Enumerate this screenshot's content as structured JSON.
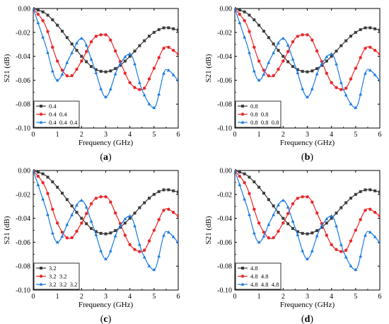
{
  "chart_data": [
    {
      "type": "line",
      "panel_label": "a",
      "xlabel": "Frequency (GHz)",
      "ylabel": "S21 (dB)",
      "xlim": [
        0,
        6
      ],
      "ylim": [
        -0.1,
        0.0
      ],
      "xticks": [
        "0",
        "1",
        "2",
        "3",
        "4",
        "5",
        "6"
      ],
      "yticks": [
        "0.00",
        "-0.02",
        "-0.04",
        "-0.06",
        "-0.08",
        "-0.10"
      ],
      "legend_position": "bottom-left",
      "x": [
        0,
        0.5,
        1,
        1.5,
        2,
        2.5,
        3,
        3.5,
        4,
        4.5,
        5,
        5.5,
        6
      ],
      "series": [
        {
          "name": "0.4",
          "color": "#3a3a3a",
          "marker": "square",
          "values": [
            0.0,
            -0.004,
            -0.014,
            -0.027,
            -0.04,
            -0.05,
            -0.053,
            -0.049,
            -0.04,
            -0.029,
            -0.02,
            -0.016,
            -0.018
          ]
        },
        {
          "name": "0.4  0.4",
          "color": "#e8272a",
          "marker": "circle",
          "values": [
            0.0,
            -0.014,
            -0.044,
            -0.057,
            -0.044,
            -0.025,
            -0.022,
            -0.04,
            -0.062,
            -0.068,
            -0.05,
            -0.032,
            -0.038
          ]
        },
        {
          "name": "0.4  0.4  0.4",
          "color": "#1a7ae0",
          "marker": "triangle",
          "values": [
            0.0,
            -0.03,
            -0.06,
            -0.041,
            -0.025,
            -0.048,
            -0.074,
            -0.05,
            -0.038,
            -0.068,
            -0.083,
            -0.051,
            -0.06
          ]
        }
      ]
    },
    {
      "type": "line",
      "panel_label": "b",
      "xlabel": "Frequency (GHz)",
      "ylabel": "S21 (dB)",
      "xlim": [
        0,
        6
      ],
      "ylim": [
        -0.1,
        0.0
      ],
      "xticks": [
        "0",
        "1",
        "2",
        "3",
        "4",
        "5",
        "6"
      ],
      "yticks": [
        "0.00",
        "-0.02",
        "-0.04",
        "-0.06",
        "-0.08",
        "-0.10"
      ],
      "legend_position": "bottom-left",
      "x": [
        0,
        0.5,
        1,
        1.5,
        2,
        2.5,
        3,
        3.5,
        4,
        4.5,
        5,
        5.5,
        6
      ],
      "series": [
        {
          "name": "0.8",
          "color": "#3a3a3a",
          "marker": "square",
          "values": [
            0.0,
            -0.004,
            -0.014,
            -0.027,
            -0.04,
            -0.05,
            -0.053,
            -0.049,
            -0.04,
            -0.029,
            -0.02,
            -0.016,
            -0.018
          ]
        },
        {
          "name": "0.8  0.8",
          "color": "#e8272a",
          "marker": "circle",
          "values": [
            0.0,
            -0.014,
            -0.044,
            -0.057,
            -0.044,
            -0.025,
            -0.022,
            -0.04,
            -0.062,
            -0.068,
            -0.05,
            -0.032,
            -0.038
          ]
        },
        {
          "name": "0.8  0.8  0.8",
          "color": "#1a7ae0",
          "marker": "triangle",
          "values": [
            0.0,
            -0.03,
            -0.06,
            -0.041,
            -0.025,
            -0.048,
            -0.074,
            -0.05,
            -0.038,
            -0.068,
            -0.083,
            -0.051,
            -0.06
          ]
        }
      ]
    },
    {
      "type": "line",
      "panel_label": "c",
      "xlabel": "Frequency (GHz)",
      "ylabel": "S21 (dB)",
      "xlim": [
        0,
        6
      ],
      "ylim": [
        -0.1,
        0.0
      ],
      "xticks": [
        "0",
        "1",
        "2",
        "3",
        "4",
        "5",
        "6"
      ],
      "yticks": [
        "0.00",
        "-0.02",
        "-0.04",
        "-0.06",
        "-0.08",
        "-0.10"
      ],
      "legend_position": "bottom-left",
      "x": [
        0,
        0.5,
        1,
        1.5,
        2,
        2.5,
        3,
        3.5,
        4,
        4.5,
        5,
        5.5,
        6
      ],
      "series": [
        {
          "name": "3.2",
          "color": "#3a3a3a",
          "marker": "square",
          "values": [
            0.0,
            -0.004,
            -0.014,
            -0.027,
            -0.04,
            -0.05,
            -0.053,
            -0.049,
            -0.04,
            -0.029,
            -0.02,
            -0.016,
            -0.018
          ]
        },
        {
          "name": "3.2  3.2",
          "color": "#e8272a",
          "marker": "circle",
          "values": [
            0.0,
            -0.014,
            -0.044,
            -0.057,
            -0.044,
            -0.025,
            -0.022,
            -0.04,
            -0.062,
            -0.068,
            -0.05,
            -0.032,
            -0.038
          ]
        },
        {
          "name": "3.2  3.2  3.2",
          "color": "#1a7ae0",
          "marker": "triangle",
          "values": [
            0.0,
            -0.03,
            -0.06,
            -0.041,
            -0.025,
            -0.048,
            -0.074,
            -0.05,
            -0.038,
            -0.068,
            -0.083,
            -0.051,
            -0.06
          ]
        }
      ]
    },
    {
      "type": "line",
      "panel_label": "d",
      "xlabel": "Frequency (GHz)",
      "ylabel": "S21 (dB)",
      "xlim": [
        0,
        6
      ],
      "ylim": [
        -0.1,
        0.0
      ],
      "xticks": [
        "0",
        "1",
        "2",
        "3",
        "4",
        "5",
        "6"
      ],
      "yticks": [
        "0.00",
        "-0.02",
        "-0.04",
        "-0.06",
        "-0.08",
        "-0.10"
      ],
      "legend_position": "bottom-left",
      "x": [
        0,
        0.5,
        1,
        1.5,
        2,
        2.5,
        3,
        3.5,
        4,
        4.5,
        5,
        5.5,
        6
      ],
      "series": [
        {
          "name": "4.8",
          "color": "#3a3a3a",
          "marker": "square",
          "values": [
            0.0,
            -0.004,
            -0.014,
            -0.027,
            -0.04,
            -0.05,
            -0.053,
            -0.049,
            -0.04,
            -0.029,
            -0.02,
            -0.016,
            -0.018
          ]
        },
        {
          "name": "4.8  4.8",
          "color": "#e8272a",
          "marker": "circle",
          "values": [
            0.0,
            -0.014,
            -0.044,
            -0.057,
            -0.044,
            -0.025,
            -0.022,
            -0.04,
            -0.062,
            -0.068,
            -0.05,
            -0.032,
            -0.038
          ]
        },
        {
          "name": "4.8  4.8  4.8",
          "color": "#1a7ae0",
          "marker": "triangle",
          "values": [
            0.0,
            -0.03,
            -0.06,
            -0.041,
            -0.025,
            -0.048,
            -0.074,
            -0.05,
            -0.038,
            -0.068,
            -0.083,
            -0.051,
            -0.06
          ]
        }
      ]
    }
  ]
}
